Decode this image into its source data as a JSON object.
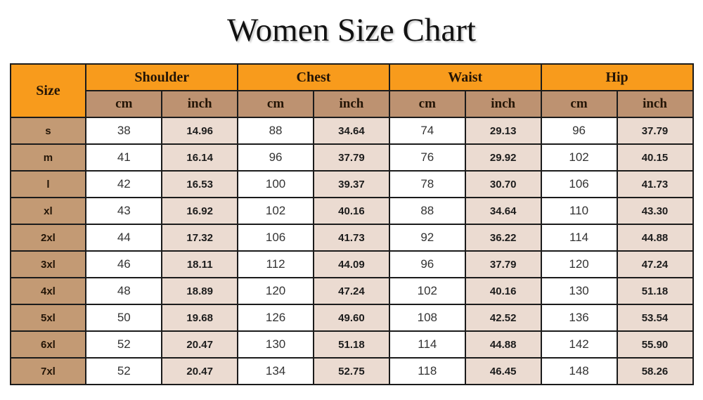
{
  "title": "Women Size Chart",
  "colors": {
    "orange": "#F89B1C",
    "tan-header": "#BD9271",
    "tan-size": "#C39A74",
    "beige-inch": "#EBDBD1",
    "border": "#1b1b1b",
    "ink": "#1c1c1c"
  },
  "table": {
    "size_header": "Size",
    "groups": [
      {
        "label": "Shoulder"
      },
      {
        "label": "Chest"
      },
      {
        "label": "Waist"
      },
      {
        "label": "Hip"
      }
    ],
    "sub_headers": [
      "cm",
      "inch"
    ],
    "group_keys": [
      "shoulder",
      "chest",
      "waist",
      "hip"
    ],
    "rows": [
      {
        "size": "s",
        "values": [
          "38",
          "14.96",
          "88",
          "34.64",
          "74",
          "29.13",
          "96",
          "37.79"
        ]
      },
      {
        "size": "m",
        "values": [
          "41",
          "16.14",
          "96",
          "37.79",
          "76",
          "29.92",
          "102",
          "40.15"
        ]
      },
      {
        "size": "l",
        "values": [
          "42",
          "16.53",
          "100",
          "39.37",
          "78",
          "30.70",
          "106",
          "41.73"
        ]
      },
      {
        "size": "xl",
        "values": [
          "43",
          "16.92",
          "102",
          "40.16",
          "88",
          "34.64",
          "110",
          "43.30"
        ]
      },
      {
        "size": "2xl",
        "values": [
          "44",
          "17.32",
          "106",
          "41.73",
          "92",
          "36.22",
          "114",
          "44.88"
        ]
      },
      {
        "size": "3xl",
        "values": [
          "46",
          "18.11",
          "112",
          "44.09",
          "96",
          "37.79",
          "120",
          "47.24"
        ]
      },
      {
        "size": "4xl",
        "values": [
          "48",
          "18.89",
          "120",
          "47.24",
          "102",
          "40.16",
          "130",
          "51.18"
        ]
      },
      {
        "size": "5xl",
        "values": [
          "50",
          "19.68",
          "126",
          "49.60",
          "108",
          "42.52",
          "136",
          "53.54"
        ]
      },
      {
        "size": "6xl",
        "values": [
          "52",
          "20.47",
          "130",
          "51.18",
          "114",
          "44.88",
          "142",
          "55.90"
        ]
      },
      {
        "size": "7xl",
        "values": [
          "52",
          "20.47",
          "134",
          "52.75",
          "118",
          "46.45",
          "148",
          "58.26"
        ]
      }
    ]
  }
}
